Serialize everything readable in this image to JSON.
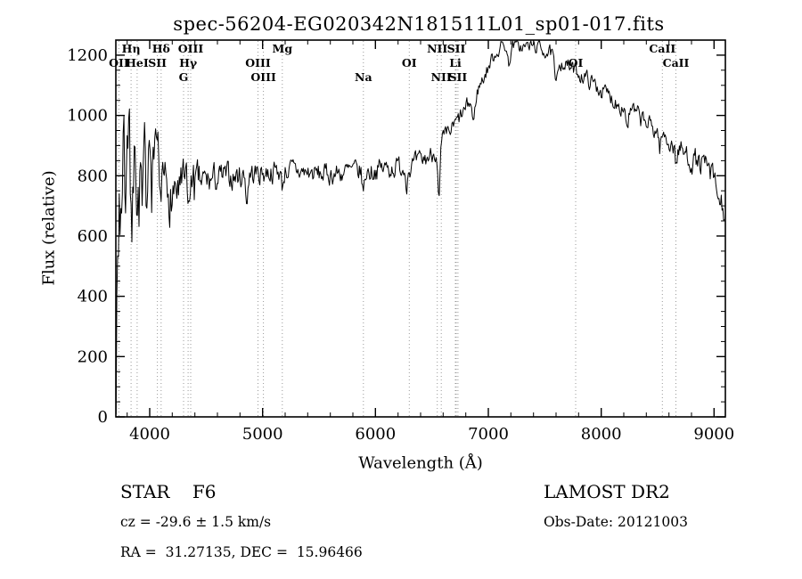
{
  "title": "spec-56204-EG020342N181511L01_sp01-017.fits",
  "chart_data": {
    "type": "line",
    "title": "spec-56204-EG020342N181511L01_sp01-017.fits",
    "xlabel": "Wavelength (Å)",
    "ylabel": "Flux (relative)",
    "xlim": [
      3700,
      9100
    ],
    "ylim": [
      0,
      1250
    ],
    "x_major_ticks": [
      4000,
      5000,
      6000,
      7000,
      8000,
      9000
    ],
    "x_minor_step": 200,
    "y_major_ticks": [
      0,
      200,
      400,
      600,
      800,
      1000,
      1200
    ],
    "y_minor_step": 50,
    "grid": false,
    "legend": "none",
    "line_color": "#000000",
    "marker_line_color": "#999999",
    "noise_seed": 7,
    "sample_step": 7,
    "continuum": [
      [
        3700,
        690
      ],
      [
        3720,
        740
      ],
      [
        3760,
        770
      ],
      [
        3800,
        760
      ],
      [
        3850,
        770
      ],
      [
        3900,
        775
      ],
      [
        3950,
        770
      ],
      [
        4000,
        780
      ],
      [
        4100,
        760
      ],
      [
        4200,
        755
      ],
      [
        4300,
        765
      ],
      [
        4400,
        775
      ],
      [
        4500,
        780
      ],
      [
        4600,
        790
      ],
      [
        4700,
        795
      ],
      [
        4800,
        800
      ],
      [
        4900,
        805
      ],
      [
        5000,
        810
      ],
      [
        5100,
        815
      ],
      [
        5200,
        820
      ],
      [
        5300,
        815
      ],
      [
        5400,
        810
      ],
      [
        5500,
        805
      ],
      [
        5600,
        805
      ],
      [
        5700,
        810
      ],
      [
        5800,
        815
      ],
      [
        5900,
        810
      ],
      [
        6000,
        820
      ],
      [
        6100,
        825
      ],
      [
        6200,
        830
      ],
      [
        6300,
        830
      ],
      [
        6400,
        845
      ],
      [
        6500,
        870
      ],
      [
        6600,
        915
      ],
      [
        6700,
        965
      ],
      [
        6800,
        1020
      ],
      [
        6900,
        1080
      ],
      [
        7000,
        1160
      ],
      [
        7050,
        1200
      ],
      [
        7100,
        1225
      ],
      [
        7150,
        1235
      ],
      [
        7200,
        1230
      ],
      [
        7250,
        1235
      ],
      [
        7300,
        1225
      ],
      [
        7350,
        1230
      ],
      [
        7400,
        1230
      ],
      [
        7450,
        1225
      ],
      [
        7500,
        1215
      ],
      [
        7550,
        1205
      ],
      [
        7600,
        1190
      ],
      [
        7700,
        1165
      ],
      [
        7800,
        1140
      ],
      [
        7900,
        1115
      ],
      [
        8000,
        1085
      ],
      [
        8100,
        1055
      ],
      [
        8200,
        1030
      ],
      [
        8300,
        1005
      ],
      [
        8400,
        975
      ],
      [
        8500,
        945
      ],
      [
        8600,
        915
      ],
      [
        8700,
        885
      ],
      [
        8800,
        855
      ],
      [
        8850,
        845
      ],
      [
        8900,
        835
      ],
      [
        8950,
        820
      ],
      [
        9000,
        780
      ],
      [
        9040,
        720
      ],
      [
        9080,
        690
      ],
      [
        9100,
        680
      ]
    ],
    "noise_amp": [
      [
        3700,
        270
      ],
      [
        3750,
        240
      ],
      [
        3800,
        210
      ],
      [
        3850,
        190
      ],
      [
        3900,
        175
      ],
      [
        3950,
        165
      ],
      [
        4000,
        150
      ],
      [
        4100,
        115
      ],
      [
        4200,
        95
      ],
      [
        4300,
        80
      ],
      [
        4400,
        65
      ],
      [
        4500,
        55
      ],
      [
        4600,
        48
      ],
      [
        4800,
        42
      ],
      [
        5000,
        38
      ],
      [
        5500,
        34
      ],
      [
        6000,
        36
      ],
      [
        6300,
        34
      ],
      [
        6600,
        30
      ],
      [
        7000,
        24
      ],
      [
        7400,
        22
      ],
      [
        7800,
        26
      ],
      [
        8200,
        30
      ],
      [
        8600,
        34
      ],
      [
        9000,
        45
      ],
      [
        9100,
        50
      ]
    ],
    "absorption_dips": [
      {
        "wavelength": 3933,
        "depth": 170,
        "sigma": 9
      },
      {
        "wavelength": 4101,
        "depth": 130,
        "sigma": 8
      },
      {
        "wavelength": 4340,
        "depth": 110,
        "sigma": 8
      },
      {
        "wavelength": 4861,
        "depth": 90,
        "sigma": 8
      },
      {
        "wavelength": 5175,
        "depth": 55,
        "sigma": 10
      },
      {
        "wavelength": 5893,
        "depth": 65,
        "sigma": 9
      },
      {
        "wavelength": 6276,
        "depth": 45,
        "sigma": 9
      },
      {
        "wavelength": 6563,
        "depth": 190,
        "sigma": 9
      },
      {
        "wavelength": 6870,
        "depth": 85,
        "sigma": 12
      },
      {
        "wavelength": 7180,
        "depth": 60,
        "sigma": 12
      },
      {
        "wavelength": 7600,
        "depth": 100,
        "sigma": 12
      },
      {
        "wavelength": 8230,
        "depth": 50,
        "sigma": 12
      },
      {
        "wavelength": 8520,
        "depth": 45,
        "sigma": 8
      },
      {
        "wavelength": 8662,
        "depth": 55,
        "sigma": 9
      }
    ],
    "spectral_lines": [
      {
        "label": "Hη",
        "wavelength": 3835,
        "row": 0
      },
      {
        "label": "Hδ",
        "wavelength": 4101,
        "row": 0
      },
      {
        "label": "OIII",
        "wavelength": 4363,
        "row": 0
      },
      {
        "label": "Mg",
        "wavelength": 5175,
        "row": 0
      },
      {
        "label": "NII",
        "wavelength": 6548,
        "row": 0
      },
      {
        "label": "SII",
        "wavelength": 6716,
        "row": 0
      },
      {
        "label": "CaII",
        "wavelength": 8542,
        "row": 0
      },
      {
        "label": "OII",
        "wavelength": 3727,
        "row": 1
      },
      {
        "label": "HeI",
        "wavelength": 3889,
        "row": 1
      },
      {
        "label": "SII",
        "wavelength": 4068,
        "row": 1
      },
      {
        "label": "Hγ",
        "wavelength": 4340,
        "row": 1
      },
      {
        "label": "OIII",
        "wavelength": 4959,
        "row": 1
      },
      {
        "label": "OI",
        "wavelength": 6300,
        "row": 1
      },
      {
        "label": "Li",
        "wavelength": 6708,
        "row": 1
      },
      {
        "label": "OI",
        "wavelength": 7774,
        "row": 1
      },
      {
        "label": "CaII",
        "wavelength": 8662,
        "row": 1
      },
      {
        "label": "G",
        "wavelength": 4300,
        "row": 2
      },
      {
        "label": "OIII",
        "wavelength": 5007,
        "row": 2
      },
      {
        "label": "Na",
        "wavelength": 5893,
        "row": 2
      },
      {
        "label": "NII",
        "wavelength": 6583,
        "row": 2
      },
      {
        "label": "SII",
        "wavelength": 6731,
        "row": 2
      }
    ]
  },
  "footer": {
    "class_label": "STAR    F6",
    "survey": "LAMOST DR2",
    "cz": "cz = -29.6 ± 1.5 km/s",
    "obs_date": "Obs-Date: 20121003",
    "ra_dec": "RA =  31.27135, DEC =  15.96466"
  }
}
